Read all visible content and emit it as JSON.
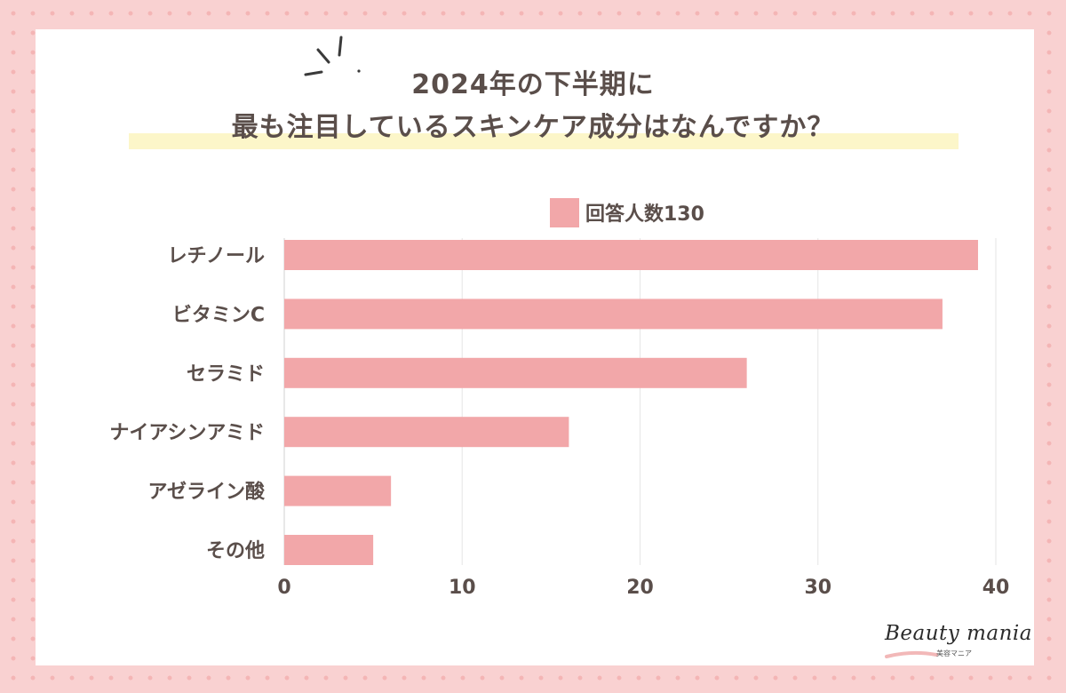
{
  "title_line1": "2024年の下半期に",
  "title_line2": "最も注目しているスキンケア成分はなんですか？",
  "logo": {
    "name": "Beauty mania",
    "sub": "美容マニア"
  },
  "colors": {
    "bar": "#f2a7a9",
    "text": "#5a4e4a",
    "grid": "#e6e6e6",
    "highlight": "#fcf6c9",
    "background": "#f9d1d1"
  },
  "chart_data": {
    "type": "bar",
    "orientation": "horizontal",
    "title": "2024年の下半期に 最も注目しているスキンケア成分はなんですか？",
    "categories": [
      "レチノール",
      "ビタミンC",
      "セラミド",
      "ナイアシンアミド",
      "アゼライン酸",
      "その他"
    ],
    "series": [
      {
        "name": "回答人数130",
        "values": [
          39,
          37,
          26,
          16,
          6,
          5
        ]
      }
    ],
    "xlim": [
      0,
      40
    ],
    "xticks": [
      0,
      10,
      20,
      30,
      40
    ],
    "grid": true,
    "legend_position": "top"
  }
}
